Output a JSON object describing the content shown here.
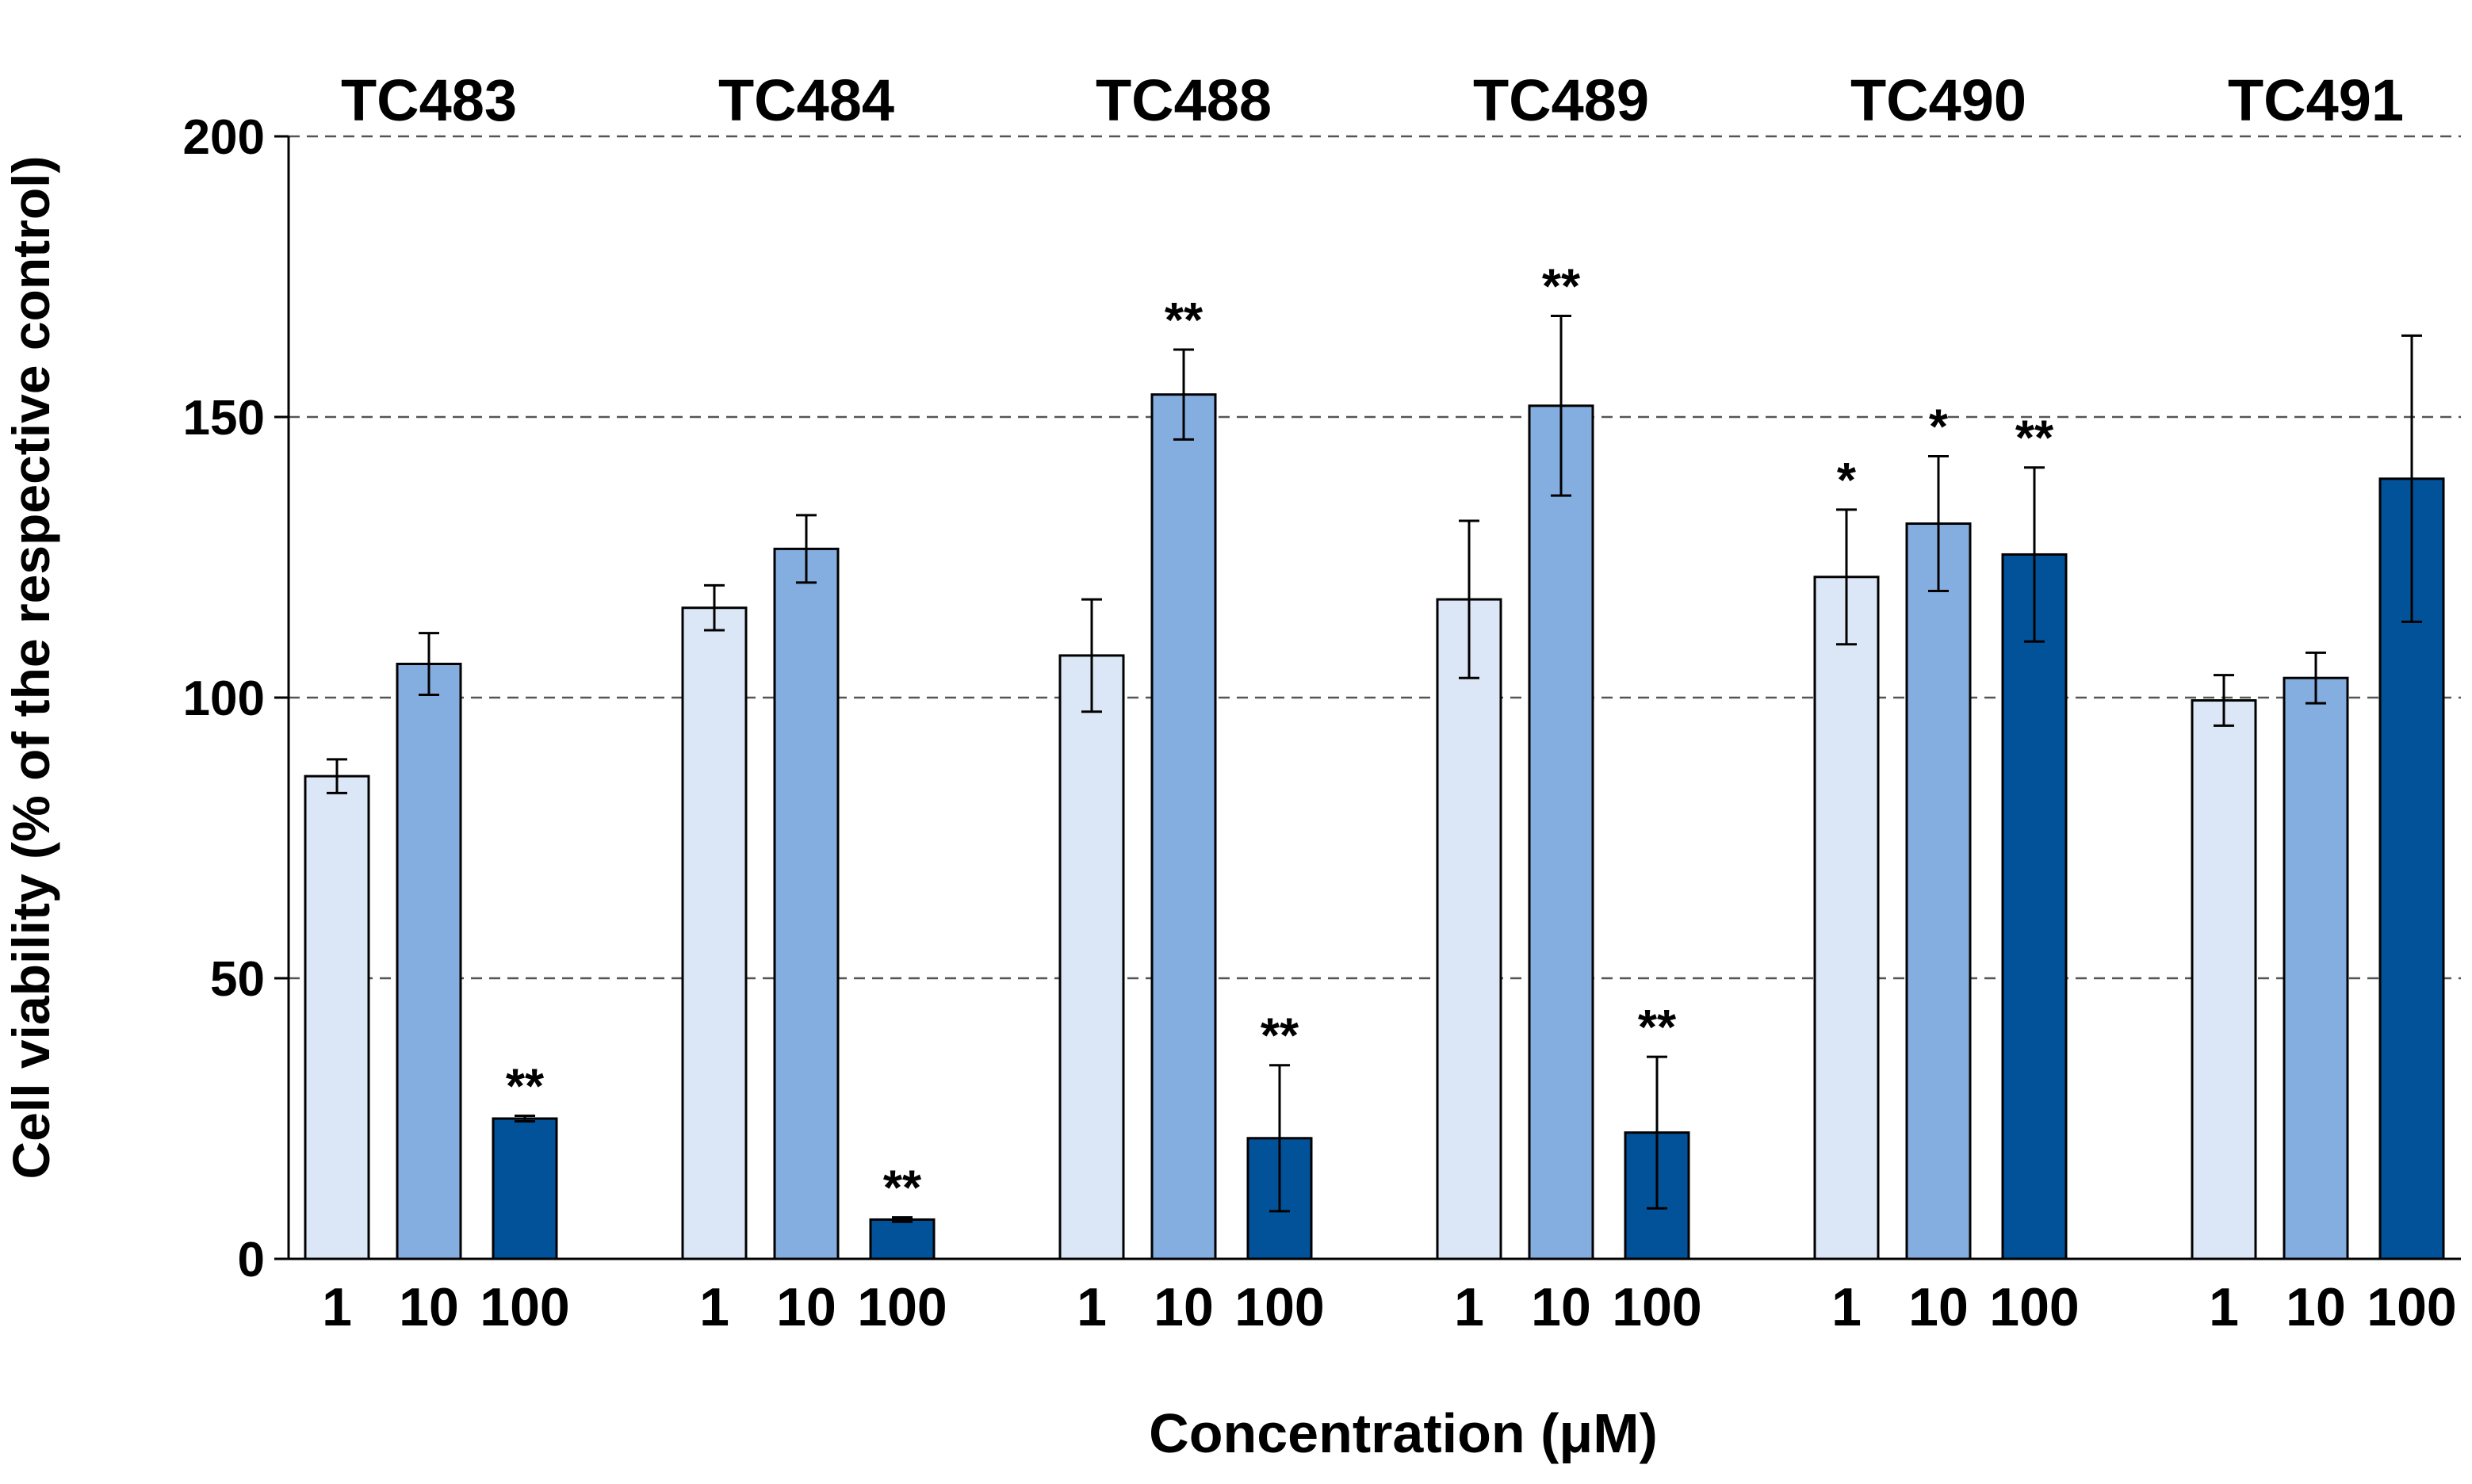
{
  "chart_data": {
    "type": "bar",
    "ylabel": "Cell viability (% of the respective control)",
    "xlabel": "Concentration (μM)",
    "ylim": [
      0,
      200
    ],
    "yticks": [
      0,
      50,
      100,
      150,
      200
    ],
    "ytick_labels": [
      "0",
      "50",
      "100",
      "150",
      "200"
    ],
    "gridlines": [
      50,
      100,
      150,
      200
    ],
    "concentration_labels": [
      "1",
      "10",
      "100"
    ],
    "colors": [
      "#dbe7f6",
      "#85aee0",
      "#02529a"
    ],
    "groups": [
      {
        "name": "TC483",
        "bars": [
          {
            "concentration": "1",
            "value": 86,
            "error": 3,
            "significance": ""
          },
          {
            "concentration": "10",
            "value": 106,
            "error": 5.5,
            "significance": ""
          },
          {
            "concentration": "100",
            "value": 25,
            "error": 0.5,
            "significance": "**"
          }
        ]
      },
      {
        "name": "TC484",
        "bars": [
          {
            "concentration": "1",
            "value": 116,
            "error": 4,
            "significance": ""
          },
          {
            "concentration": "10",
            "value": 126.5,
            "error": 6,
            "significance": ""
          },
          {
            "concentration": "100",
            "value": 7,
            "error": 0.4,
            "significance": "**"
          }
        ]
      },
      {
        "name": "TC488",
        "bars": [
          {
            "concentration": "1",
            "value": 107.5,
            "error": 10,
            "significance": ""
          },
          {
            "concentration": "10",
            "value": 154,
            "error": 8,
            "significance": "**"
          },
          {
            "concentration": "100",
            "value": 21.5,
            "error": 13,
            "significance": "**"
          }
        ]
      },
      {
        "name": "TC489",
        "bars": [
          {
            "concentration": "1",
            "value": 117.5,
            "error": 14,
            "significance": ""
          },
          {
            "concentration": "10",
            "value": 152,
            "error": 16,
            "significance": "**"
          },
          {
            "concentration": "100",
            "value": 22.5,
            "error": 13.5,
            "significance": "**"
          }
        ]
      },
      {
        "name": "TC490",
        "bars": [
          {
            "concentration": "1",
            "value": 121.5,
            "error": 12,
            "significance": "*"
          },
          {
            "concentration": "10",
            "value": 131,
            "error": 12,
            "significance": "*"
          },
          {
            "concentration": "100",
            "value": 125.5,
            "error": 15.5,
            "significance": "**"
          }
        ]
      },
      {
        "name": "TC491",
        "bars": [
          {
            "concentration": "1",
            "value": 99.5,
            "error": 4.5,
            "significance": ""
          },
          {
            "concentration": "10",
            "value": 103.5,
            "error": 4.5,
            "significance": ""
          },
          {
            "concentration": "100",
            "value": 139,
            "error": 25.5,
            "significance": ""
          }
        ]
      }
    ]
  }
}
